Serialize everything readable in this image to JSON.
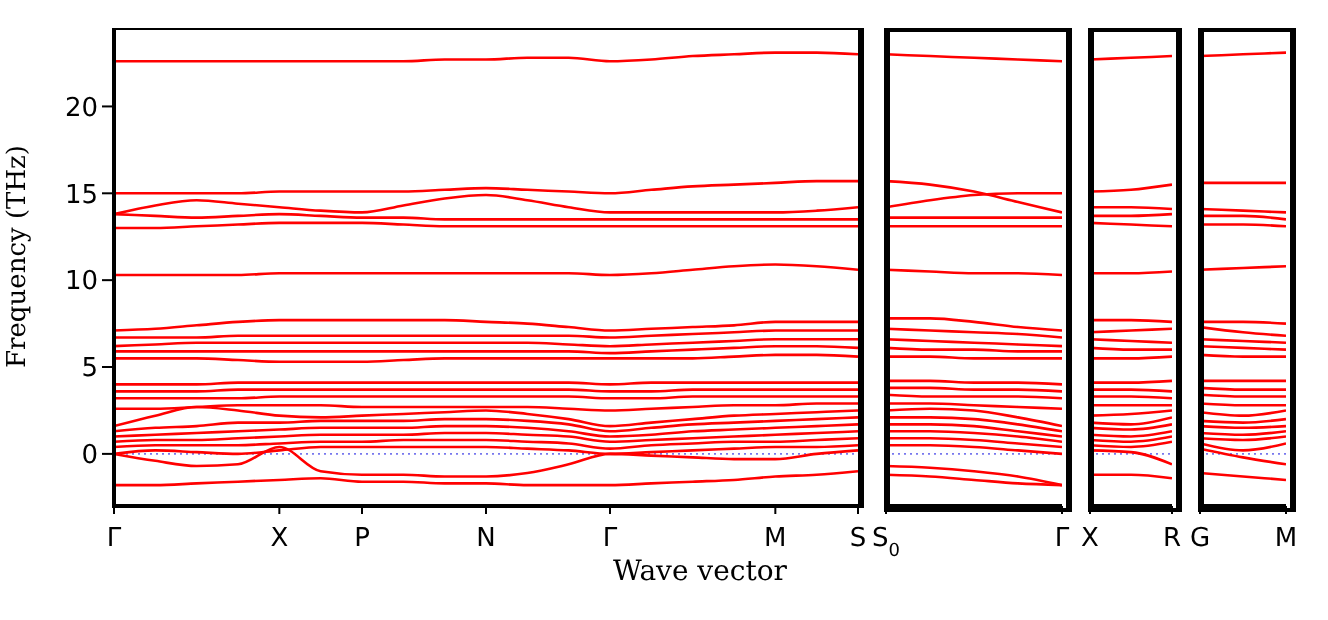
{
  "chart_data": [
    {
      "type": "line",
      "xlabel": "Wave vector",
      "ylabel": "Frequency (THz)",
      "categories": [
        "Γ",
        null,
        null,
        null,
        "X",
        null,
        "P",
        null,
        null,
        "N",
        null,
        null,
        "Γ",
        null,
        null,
        null,
        "M",
        null,
        "S"
      ],
      "ylim": [
        -3,
        24.4
      ],
      "yticks": [
        0,
        5,
        10,
        15,
        20
      ],
      "ref_lines": [
        {
          "axis": "y",
          "value": 0,
          "color": "#7777ee",
          "line_style": "dotted"
        }
      ],
      "series": [
        {
          "color": "#ff0000",
          "values": [
            22.6,
            22.6,
            22.6,
            22.6,
            22.6,
            22.6,
            22.6,
            22.6,
            22.7,
            22.7,
            22.8,
            22.8,
            22.6,
            22.7,
            22.9,
            23.0,
            23.1,
            23.1,
            23.0
          ]
        },
        {
          "color": "#ff0000",
          "values": [
            15.0,
            15.0,
            15.0,
            15.0,
            15.1,
            15.1,
            15.1,
            15.1,
            15.2,
            15.3,
            15.2,
            15.1,
            15.0,
            15.2,
            15.4,
            15.5,
            15.6,
            15.7,
            15.7
          ]
        },
        {
          "color": "#ff0000",
          "values": [
            13.8,
            14.3,
            14.6,
            14.4,
            14.2,
            14.0,
            13.9,
            14.3,
            14.7,
            14.9,
            14.6,
            14.2,
            13.9,
            13.9,
            13.9,
            13.9,
            13.9,
            14.0,
            14.2
          ]
        },
        {
          "color": "#ff0000",
          "values": [
            13.8,
            13.7,
            13.6,
            13.7,
            13.8,
            13.7,
            13.6,
            13.6,
            13.5,
            13.5,
            13.5,
            13.5,
            13.5,
            13.5,
            13.5,
            13.5,
            13.5,
            13.5,
            13.5
          ]
        },
        {
          "color": "#ff0000",
          "values": [
            13.0,
            13.0,
            13.1,
            13.2,
            13.3,
            13.3,
            13.3,
            13.2,
            13.1,
            13.1,
            13.1,
            13.1,
            13.1,
            13.1,
            13.1,
            13.1,
            13.1,
            13.1,
            13.1
          ]
        },
        {
          "color": "#ff0000",
          "values": [
            10.3,
            10.3,
            10.3,
            10.3,
            10.4,
            10.4,
            10.4,
            10.4,
            10.4,
            10.4,
            10.4,
            10.4,
            10.3,
            10.4,
            10.6,
            10.8,
            10.9,
            10.8,
            10.6
          ]
        },
        {
          "color": "#ff0000",
          "values": [
            7.1,
            7.2,
            7.4,
            7.6,
            7.7,
            7.7,
            7.7,
            7.7,
            7.7,
            7.6,
            7.5,
            7.3,
            7.1,
            7.2,
            7.3,
            7.4,
            7.6,
            7.6,
            7.6
          ]
        },
        {
          "color": "#ff0000",
          "values": [
            6.7,
            6.7,
            6.7,
            6.8,
            6.8,
            6.8,
            6.8,
            6.8,
            6.8,
            6.8,
            6.8,
            6.8,
            6.7,
            6.8,
            6.9,
            7.0,
            7.1,
            7.1,
            7.1
          ]
        },
        {
          "color": "#ff0000",
          "values": [
            6.2,
            6.3,
            6.4,
            6.4,
            6.4,
            6.4,
            6.4,
            6.4,
            6.4,
            6.4,
            6.4,
            6.3,
            6.2,
            6.3,
            6.4,
            6.5,
            6.6,
            6.6,
            6.6
          ]
        },
        {
          "color": "#ff0000",
          "values": [
            5.9,
            5.9,
            5.9,
            5.9,
            5.9,
            5.9,
            5.9,
            5.9,
            5.9,
            5.9,
            5.9,
            5.9,
            5.8,
            5.9,
            6.0,
            6.1,
            6.2,
            6.2,
            6.1
          ]
        },
        {
          "color": "#ff0000",
          "values": [
            5.5,
            5.5,
            5.5,
            5.4,
            5.3,
            5.3,
            5.3,
            5.4,
            5.5,
            5.5,
            5.5,
            5.5,
            5.5,
            5.5,
            5.5,
            5.6,
            5.7,
            5.7,
            5.6
          ]
        },
        {
          "color": "#ff0000",
          "values": [
            4.0,
            4.0,
            4.0,
            4.1,
            4.1,
            4.1,
            4.1,
            4.1,
            4.1,
            4.1,
            4.1,
            4.1,
            4.0,
            4.1,
            4.1,
            4.1,
            4.1,
            4.1,
            4.1
          ]
        },
        {
          "color": "#ff0000",
          "values": [
            3.6,
            3.6,
            3.6,
            3.7,
            3.7,
            3.7,
            3.7,
            3.7,
            3.7,
            3.7,
            3.7,
            3.7,
            3.6,
            3.6,
            3.7,
            3.7,
            3.7,
            3.7,
            3.7
          ]
        },
        {
          "color": "#ff0000",
          "values": [
            3.2,
            3.2,
            3.2,
            3.2,
            3.3,
            3.3,
            3.3,
            3.3,
            3.3,
            3.3,
            3.3,
            3.3,
            3.2,
            3.2,
            3.3,
            3.3,
            3.3,
            3.3,
            3.3
          ]
        },
        {
          "color": "#ff0000",
          "values": [
            2.6,
            2.6,
            2.7,
            2.8,
            2.8,
            2.8,
            2.7,
            2.7,
            2.7,
            2.7,
            2.7,
            2.6,
            2.5,
            2.6,
            2.7,
            2.8,
            2.8,
            2.9,
            2.9
          ]
        },
        {
          "color": "#ff0000",
          "values": [
            1.6,
            2.2,
            2.7,
            2.5,
            2.2,
            2.1,
            2.2,
            2.3,
            2.4,
            2.5,
            2.3,
            2.0,
            1.6,
            1.8,
            2.0,
            2.2,
            2.3,
            2.4,
            2.5
          ]
        },
        {
          "color": "#ff0000",
          "values": [
            1.3,
            1.5,
            1.6,
            1.8,
            1.8,
            1.9,
            1.9,
            1.9,
            2.0,
            2.0,
            1.9,
            1.7,
            1.3,
            1.5,
            1.7,
            1.8,
            1.9,
            2.0,
            2.1
          ]
        },
        {
          "color": "#ff0000",
          "values": [
            1.0,
            1.1,
            1.2,
            1.3,
            1.4,
            1.5,
            1.5,
            1.5,
            1.6,
            1.6,
            1.5,
            1.3,
            1.0,
            1.1,
            1.3,
            1.4,
            1.5,
            1.6,
            1.7
          ]
        },
        {
          "color": "#ff0000",
          "values": [
            0.7,
            0.8,
            0.8,
            0.9,
            1.0,
            1.1,
            1.1,
            1.1,
            1.2,
            1.2,
            1.1,
            1.0,
            0.7,
            0.8,
            0.9,
            1.0,
            1.1,
            1.2,
            1.3
          ]
        },
        {
          "color": "#ff0000",
          "values": [
            0.4,
            0.5,
            0.5,
            0.5,
            0.6,
            0.7,
            0.7,
            0.8,
            0.8,
            0.8,
            0.7,
            0.6,
            0.3,
            0.5,
            0.6,
            0.7,
            0.7,
            0.8,
            0.9
          ]
        },
        {
          "color": "#ff0000",
          "values": [
            0.0,
            0.2,
            0.1,
            0.0,
            0.2,
            0.4,
            0.4,
            0.4,
            0.4,
            0.4,
            0.3,
            0.2,
            0.0,
            0.1,
            0.2,
            0.3,
            0.4,
            0.4,
            0.5
          ]
        },
        {
          "color": "#ff0000",
          "values": [
            0.0,
            -0.4,
            -0.7,
            -0.6,
            0.4,
            -1.0,
            -1.2,
            -1.2,
            -1.3,
            -1.3,
            -1.1,
            -0.6,
            0.0,
            -0.1,
            -0.2,
            -0.3,
            -0.3,
            0.0,
            0.2
          ]
        },
        {
          "color": "#ff0000",
          "values": [
            -1.8,
            -1.8,
            -1.7,
            -1.6,
            -1.5,
            -1.4,
            -1.6,
            -1.6,
            -1.7,
            -1.7,
            -1.8,
            -1.8,
            -1.8,
            -1.7,
            -1.6,
            -1.5,
            -1.3,
            -1.2,
            -1.0
          ]
        }
      ]
    },
    {
      "type": "line",
      "tick_labels": "x",
      "categories": [
        "S$_{0}$",
        null,
        null,
        null,
        "Γ"
      ],
      "ylim": [
        -3,
        24.4
      ],
      "ref_lines": [
        {
          "axis": "y",
          "value": 0,
          "color": "#7777ee",
          "line_style": "dotted"
        }
      ],
      "series": [
        {
          "color": "#ff0000",
          "values": [
            23.0,
            22.9,
            22.8,
            22.7,
            22.6
          ]
        },
        {
          "color": "#ff0000",
          "values": [
            15.7,
            15.5,
            15.1,
            14.5,
            13.9
          ]
        },
        {
          "color": "#ff0000",
          "values": [
            14.2,
            14.6,
            14.9,
            15.0,
            15.0
          ]
        },
        {
          "color": "#ff0000",
          "values": [
            13.6,
            13.6,
            13.6,
            13.6,
            13.6
          ]
        },
        {
          "color": "#ff0000",
          "values": [
            13.1,
            13.1,
            13.1,
            13.1,
            13.1
          ]
        },
        {
          "color": "#ff0000",
          "values": [
            10.6,
            10.5,
            10.4,
            10.4,
            10.3
          ]
        },
        {
          "color": "#ff0000",
          "values": [
            7.8,
            7.8,
            7.6,
            7.3,
            7.1
          ]
        },
        {
          "color": "#ff0000",
          "values": [
            7.2,
            7.1,
            7.0,
            6.9,
            6.7
          ]
        },
        {
          "color": "#ff0000",
          "values": [
            6.6,
            6.5,
            6.4,
            6.3,
            6.2
          ]
        },
        {
          "color": "#ff0000",
          "values": [
            6.1,
            6.0,
            6.0,
            5.9,
            5.9
          ]
        },
        {
          "color": "#ff0000",
          "values": [
            5.6,
            5.6,
            5.5,
            5.5,
            5.5
          ]
        },
        {
          "color": "#ff0000",
          "values": [
            4.2,
            4.2,
            4.1,
            4.1,
            4.0
          ]
        },
        {
          "color": "#ff0000",
          "values": [
            3.8,
            3.8,
            3.7,
            3.7,
            3.6
          ]
        },
        {
          "color": "#ff0000",
          "values": [
            3.4,
            3.3,
            3.3,
            3.3,
            3.2
          ]
        },
        {
          "color": "#ff0000",
          "values": [
            2.9,
            2.9,
            2.8,
            2.7,
            2.6
          ]
        },
        {
          "color": "#ff0000",
          "values": [
            2.5,
            2.6,
            2.5,
            2.1,
            1.6
          ]
        },
        {
          "color": "#ff0000",
          "values": [
            2.1,
            2.1,
            2.0,
            1.7,
            1.3
          ]
        },
        {
          "color": "#ff0000",
          "values": [
            1.7,
            1.7,
            1.6,
            1.3,
            1.0
          ]
        },
        {
          "color": "#ff0000",
          "values": [
            1.3,
            1.3,
            1.2,
            1.0,
            0.7
          ]
        },
        {
          "color": "#ff0000",
          "values": [
            0.9,
            0.9,
            0.8,
            0.6,
            0.4
          ]
        },
        {
          "color": "#ff0000",
          "values": [
            0.5,
            0.5,
            0.4,
            0.2,
            0.0
          ]
        },
        {
          "color": "#ff0000",
          "values": [
            -0.7,
            -0.8,
            -1.0,
            -1.3,
            -1.8
          ]
        },
        {
          "color": "#ff0000",
          "values": [
            -1.2,
            -1.3,
            -1.5,
            -1.7,
            -1.8
          ]
        }
      ]
    },
    {
      "type": "line",
      "tick_labels": "x",
      "categories": [
        "X",
        null,
        "R"
      ],
      "ylim": [
        -3,
        24.4
      ],
      "ref_lines": [
        {
          "axis": "y",
          "value": 0,
          "color": "#7777ee",
          "line_style": "dotted"
        }
      ],
      "series": [
        {
          "color": "#ff0000",
          "values": [
            22.7,
            22.8,
            22.9
          ]
        },
        {
          "color": "#ff0000",
          "values": [
            15.1,
            15.2,
            15.5
          ]
        },
        {
          "color": "#ff0000",
          "values": [
            14.2,
            14.2,
            14.1
          ]
        },
        {
          "color": "#ff0000",
          "values": [
            13.7,
            13.7,
            13.8
          ]
        },
        {
          "color": "#ff0000",
          "values": [
            13.3,
            13.2,
            13.1
          ]
        },
        {
          "color": "#ff0000",
          "values": [
            10.4,
            10.4,
            10.5
          ]
        },
        {
          "color": "#ff0000",
          "values": [
            7.7,
            7.7,
            7.6
          ]
        },
        {
          "color": "#ff0000",
          "values": [
            7.0,
            7.1,
            7.2
          ]
        },
        {
          "color": "#ff0000",
          "values": [
            6.6,
            6.5,
            6.4
          ]
        },
        {
          "color": "#ff0000",
          "values": [
            6.1,
            6.0,
            6.0
          ]
        },
        {
          "color": "#ff0000",
          "values": [
            5.5,
            5.5,
            5.6
          ]
        },
        {
          "color": "#ff0000",
          "values": [
            4.1,
            4.1,
            4.2
          ]
        },
        {
          "color": "#ff0000",
          "values": [
            3.7,
            3.7,
            3.6
          ]
        },
        {
          "color": "#ff0000",
          "values": [
            3.3,
            3.3,
            3.2
          ]
        },
        {
          "color": "#ff0000",
          "values": [
            2.8,
            2.8,
            2.8
          ]
        },
        {
          "color": "#ff0000",
          "values": [
            2.2,
            2.3,
            2.5
          ]
        },
        {
          "color": "#ff0000",
          "values": [
            1.8,
            1.7,
            2.1
          ]
        },
        {
          "color": "#ff0000",
          "values": [
            1.5,
            1.4,
            1.7
          ]
        },
        {
          "color": "#ff0000",
          "values": [
            1.1,
            1.0,
            1.3
          ]
        },
        {
          "color": "#ff0000",
          "values": [
            0.8,
            0.7,
            1.0
          ]
        },
        {
          "color": "#ff0000",
          "values": [
            0.5,
            0.4,
            0.7
          ]
        },
        {
          "color": "#ff0000",
          "values": [
            0.2,
            0.1,
            -0.6
          ]
        },
        {
          "color": "#ff0000",
          "values": [
            -1.2,
            -1.2,
            -1.4
          ]
        }
      ]
    },
    {
      "type": "line",
      "tick_labels": "x",
      "categories": [
        "G",
        null,
        "M"
      ],
      "ylim": [
        -3,
        24.4
      ],
      "ref_lines": [
        {
          "axis": "y",
          "value": 0,
          "color": "#7777ee",
          "line_style": "dotted"
        }
      ],
      "series": [
        {
          "color": "#ff0000",
          "values": [
            22.9,
            23.0,
            23.1
          ]
        },
        {
          "color": "#ff0000",
          "values": [
            15.6,
            15.6,
            15.6
          ]
        },
        {
          "color": "#ff0000",
          "values": [
            14.1,
            14.0,
            13.9
          ]
        },
        {
          "color": "#ff0000",
          "values": [
            13.7,
            13.7,
            13.5
          ]
        },
        {
          "color": "#ff0000",
          "values": [
            13.2,
            13.2,
            13.1
          ]
        },
        {
          "color": "#ff0000",
          "values": [
            10.6,
            10.7,
            10.8
          ]
        },
        {
          "color": "#ff0000",
          "values": [
            7.6,
            7.6,
            7.5
          ]
        },
        {
          "color": "#ff0000",
          "values": [
            7.3,
            7.0,
            6.8
          ]
        },
        {
          "color": "#ff0000",
          "values": [
            6.6,
            6.5,
            6.4
          ]
        },
        {
          "color": "#ff0000",
          "values": [
            6.2,
            6.1,
            6.0
          ]
        },
        {
          "color": "#ff0000",
          "values": [
            5.7,
            5.6,
            5.6
          ]
        },
        {
          "color": "#ff0000",
          "values": [
            4.2,
            4.2,
            4.2
          ]
        },
        {
          "color": "#ff0000",
          "values": [
            3.8,
            3.7,
            3.7
          ]
        },
        {
          "color": "#ff0000",
          "values": [
            3.4,
            3.3,
            3.3
          ]
        },
        {
          "color": "#ff0000",
          "values": [
            2.9,
            2.8,
            2.8
          ]
        },
        {
          "color": "#ff0000",
          "values": [
            2.4,
            2.2,
            2.5
          ]
        },
        {
          "color": "#ff0000",
          "values": [
            1.9,
            1.8,
            2.0
          ]
        },
        {
          "color": "#ff0000",
          "values": [
            1.6,
            1.5,
            1.6
          ]
        },
        {
          "color": "#ff0000",
          "values": [
            1.2,
            1.1,
            1.3
          ]
        },
        {
          "color": "#ff0000",
          "values": [
            0.9,
            0.8,
            1.0
          ]
        },
        {
          "color": "#ff0000",
          "values": [
            0.6,
            0.2,
            0.6
          ]
        },
        {
          "color": "#ff0000",
          "values": [
            0.3,
            -0.2,
            -0.6
          ]
        },
        {
          "color": "#ff0000",
          "values": [
            -1.1,
            -1.3,
            -1.5
          ]
        }
      ]
    }
  ]
}
